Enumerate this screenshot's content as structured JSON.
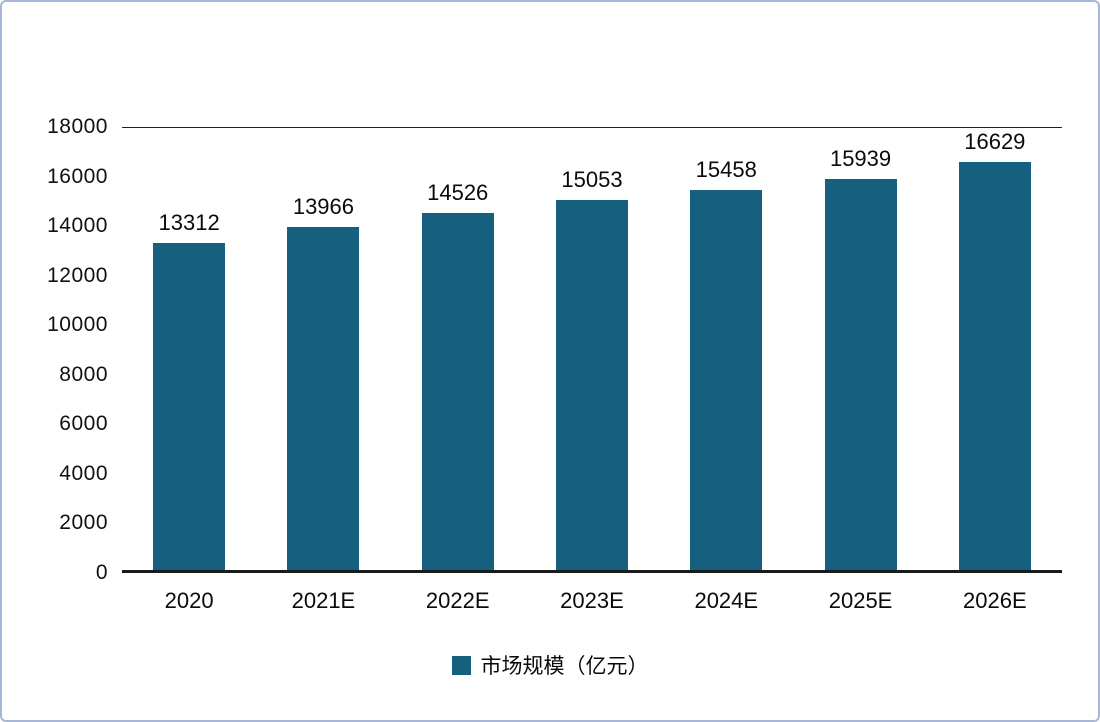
{
  "frame": {
    "background": "#ffffff",
    "border_color": "#a9b7d6"
  },
  "chart_data": {
    "type": "bar",
    "categories": [
      "2020",
      "2021E",
      "2022E",
      "2023E",
      "2024E",
      "2025E",
      "2026E"
    ],
    "values": [
      13312,
      13966,
      14526,
      15053,
      15458,
      15939,
      16629
    ],
    "title": "",
    "xlabel": "",
    "ylabel": "",
    "ylim": [
      0,
      18000
    ],
    "ytick_step": 2000,
    "ytick_labels": [
      "18000",
      "16000",
      "14000",
      "12000",
      "10000",
      "8000",
      "6000",
      "4000",
      "2000",
      "0"
    ],
    "data_labels": [
      "13312",
      "13966",
      "14526",
      "15053",
      "15458",
      "15939",
      "16629"
    ],
    "bar_color": "#14607E",
    "grid": "top boundary line only, bottom axis line",
    "legend_position": "bottom-center",
    "series_name": "市场规模（亿元）"
  },
  "legend": {
    "label": "市场规模（亿元）"
  }
}
